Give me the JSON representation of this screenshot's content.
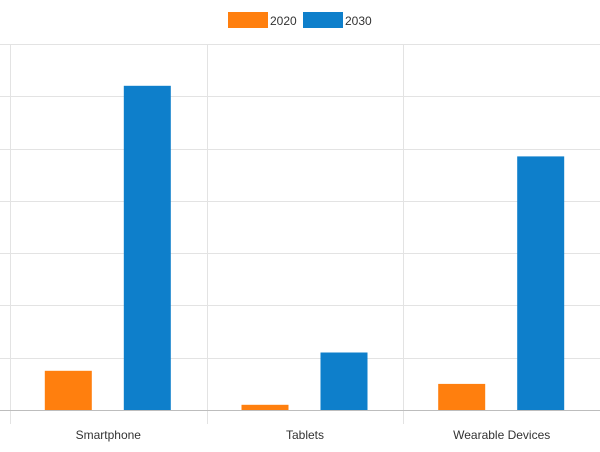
{
  "chart_data": {
    "type": "bar",
    "title": "",
    "xlabel": "",
    "ylabel": "",
    "categories": [
      "Smartphone",
      "Tablets",
      "Wearable Devices"
    ],
    "series": [
      {
        "name": "2020",
        "color": "#ff7f0e",
        "values": [
          7.5,
          1.0,
          5.0
        ]
      },
      {
        "name": "2030",
        "color": "#0e7fcb",
        "values": [
          62,
          11,
          48.5
        ]
      }
    ],
    "ylim": [
      0,
      70
    ],
    "y_gridline_step": 10,
    "grid": true,
    "legend_position": "top-center"
  }
}
